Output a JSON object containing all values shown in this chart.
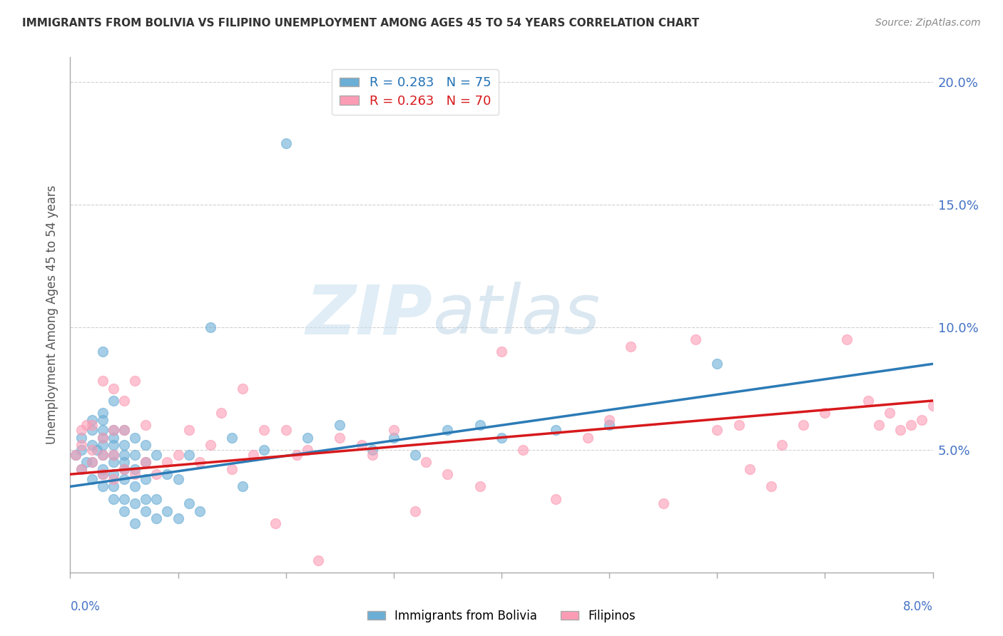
{
  "title": "IMMIGRANTS FROM BOLIVIA VS FILIPINO UNEMPLOYMENT AMONG AGES 45 TO 54 YEARS CORRELATION CHART",
  "source": "Source: ZipAtlas.com",
  "ylabel": "Unemployment Among Ages 45 to 54 years",
  "xlim": [
    0.0,
    0.08
  ],
  "ylim": [
    0.0,
    0.21
  ],
  "yticks": [
    0.05,
    0.1,
    0.15,
    0.2
  ],
  "ytick_labels": [
    "5.0%",
    "10.0%",
    "15.0%",
    "20.0%"
  ],
  "xticks": [
    0.0,
    0.01,
    0.02,
    0.03,
    0.04,
    0.05,
    0.06,
    0.07,
    0.08
  ],
  "legend1_R": "0.283",
  "legend1_N": "75",
  "legend2_R": "0.263",
  "legend2_N": "70",
  "color_blue": "#6baed6",
  "color_pink": "#fc9cb4",
  "color_blue_line": "#2c7bb6",
  "color_pink_line": "#d7191c",
  "color_blue_dark": "#2171b5",
  "color_pink_dark": "#d7191c",
  "color_axis": "#4472c4",
  "watermark_zip": "ZIP",
  "watermark_atlas": "atlas",
  "legend_label_blue": "Immigrants from Bolivia",
  "legend_label_pink": "Filipinos",
  "blue_scatter_x": [
    0.0005,
    0.001,
    0.001,
    0.001,
    0.0015,
    0.002,
    0.002,
    0.002,
    0.002,
    0.002,
    0.0025,
    0.003,
    0.003,
    0.003,
    0.003,
    0.003,
    0.003,
    0.003,
    0.003,
    0.003,
    0.003,
    0.004,
    0.004,
    0.004,
    0.004,
    0.004,
    0.004,
    0.004,
    0.004,
    0.004,
    0.005,
    0.005,
    0.005,
    0.005,
    0.005,
    0.005,
    0.005,
    0.005,
    0.006,
    0.006,
    0.006,
    0.006,
    0.006,
    0.006,
    0.007,
    0.007,
    0.007,
    0.007,
    0.007,
    0.008,
    0.008,
    0.008,
    0.009,
    0.009,
    0.01,
    0.01,
    0.011,
    0.011,
    0.012,
    0.013,
    0.015,
    0.016,
    0.018,
    0.02,
    0.022,
    0.025,
    0.028,
    0.03,
    0.032,
    0.035,
    0.038,
    0.04,
    0.045,
    0.05,
    0.06
  ],
  "blue_scatter_y": [
    0.048,
    0.042,
    0.05,
    0.055,
    0.045,
    0.038,
    0.045,
    0.052,
    0.058,
    0.062,
    0.05,
    0.035,
    0.04,
    0.042,
    0.048,
    0.052,
    0.055,
    0.058,
    0.062,
    0.065,
    0.09,
    0.03,
    0.035,
    0.04,
    0.045,
    0.048,
    0.052,
    0.055,
    0.058,
    0.07,
    0.025,
    0.03,
    0.038,
    0.042,
    0.045,
    0.048,
    0.052,
    0.058,
    0.02,
    0.028,
    0.035,
    0.042,
    0.048,
    0.055,
    0.025,
    0.03,
    0.038,
    0.045,
    0.052,
    0.022,
    0.03,
    0.048,
    0.025,
    0.04,
    0.022,
    0.038,
    0.028,
    0.048,
    0.025,
    0.1,
    0.055,
    0.035,
    0.05,
    0.175,
    0.055,
    0.06,
    0.05,
    0.055,
    0.048,
    0.058,
    0.06,
    0.055,
    0.058,
    0.06,
    0.085
  ],
  "pink_scatter_x": [
    0.0005,
    0.001,
    0.001,
    0.001,
    0.0015,
    0.002,
    0.002,
    0.002,
    0.003,
    0.003,
    0.003,
    0.003,
    0.004,
    0.004,
    0.004,
    0.004,
    0.005,
    0.005,
    0.005,
    0.006,
    0.006,
    0.007,
    0.007,
    0.008,
    0.009,
    0.01,
    0.011,
    0.012,
    0.013,
    0.014,
    0.015,
    0.016,
    0.017,
    0.018,
    0.019,
    0.02,
    0.021,
    0.022,
    0.023,
    0.025,
    0.027,
    0.028,
    0.03,
    0.032,
    0.033,
    0.035,
    0.038,
    0.04,
    0.042,
    0.045,
    0.048,
    0.05,
    0.052,
    0.055,
    0.058,
    0.06,
    0.062,
    0.063,
    0.065,
    0.066,
    0.068,
    0.07,
    0.072,
    0.074,
    0.075,
    0.076,
    0.077,
    0.078,
    0.079,
    0.08
  ],
  "pink_scatter_y": [
    0.048,
    0.042,
    0.052,
    0.058,
    0.06,
    0.045,
    0.05,
    0.06,
    0.04,
    0.048,
    0.055,
    0.078,
    0.038,
    0.048,
    0.058,
    0.075,
    0.042,
    0.058,
    0.07,
    0.04,
    0.078,
    0.045,
    0.06,
    0.04,
    0.045,
    0.048,
    0.058,
    0.045,
    0.052,
    0.065,
    0.042,
    0.075,
    0.048,
    0.058,
    0.02,
    0.058,
    0.048,
    0.05,
    0.005,
    0.055,
    0.052,
    0.048,
    0.058,
    0.025,
    0.045,
    0.04,
    0.035,
    0.09,
    0.05,
    0.03,
    0.055,
    0.062,
    0.092,
    0.028,
    0.095,
    0.058,
    0.06,
    0.042,
    0.035,
    0.052,
    0.06,
    0.065,
    0.095,
    0.07,
    0.06,
    0.065,
    0.058,
    0.06,
    0.062,
    0.068
  ],
  "blue_trend_x0": 0.0,
  "blue_trend_x1": 0.08,
  "blue_trend_y0": 0.035,
  "blue_trend_y1": 0.085,
  "pink_trend_x0": 0.0,
  "pink_trend_x1": 0.08,
  "pink_trend_y0": 0.04,
  "pink_trend_y1": 0.07
}
